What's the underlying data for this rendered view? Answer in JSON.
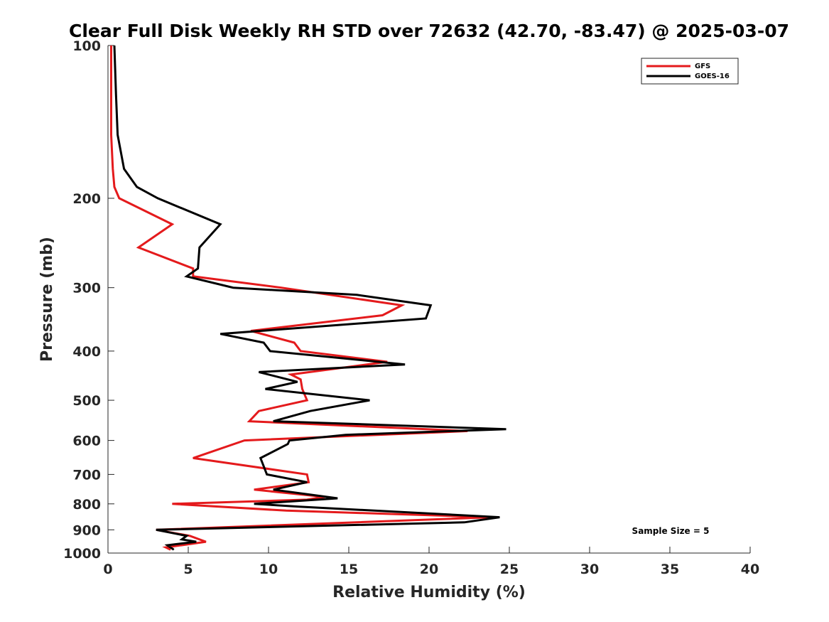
{
  "chart_data": {
    "type": "line",
    "title": "Clear Full Disk Weekly RH STD over 72632 (42.70, -83.47) @ 2025-03-07",
    "xlabel": "Relative Humidity (%)",
    "ylabel": "Pressure (mb)",
    "xlim": [
      0,
      40
    ],
    "ylim": [
      100,
      1000
    ],
    "y_scale": "log",
    "y_reversed": true,
    "x_ticks": [
      0,
      5,
      10,
      15,
      20,
      25,
      30,
      35,
      40
    ],
    "y_ticks": [
      100,
      200,
      300,
      400,
      500,
      600,
      700,
      800,
      900,
      1000
    ],
    "grid": false,
    "legend_position": "top-right",
    "annotation": "Sample Size = 5",
    "series": [
      {
        "name": "GFS",
        "color": "#e41a1c",
        "points": [
          {
            "rh": 0.2,
            "p": 100
          },
          {
            "rh": 0.2,
            "p": 125
          },
          {
            "rh": 0.2,
            "p": 150
          },
          {
            "rh": 0.3,
            "p": 175
          },
          {
            "rh": 0.4,
            "p": 190
          },
          {
            "rh": 0.7,
            "p": 200
          },
          {
            "rh": 4.0,
            "p": 225
          },
          {
            "rh": 1.9,
            "p": 250
          },
          {
            "rh": 5.3,
            "p": 275
          },
          {
            "rh": 5.3,
            "p": 285
          },
          {
            "rh": 10.8,
            "p": 300
          },
          {
            "rh": 18.3,
            "p": 325
          },
          {
            "rh": 17.1,
            "p": 340
          },
          {
            "rh": 8.9,
            "p": 365
          },
          {
            "rh": 11.6,
            "p": 385
          },
          {
            "rh": 12.0,
            "p": 400
          },
          {
            "rh": 17.4,
            "p": 420
          },
          {
            "rh": 11.4,
            "p": 445
          },
          {
            "rh": 12.0,
            "p": 455
          },
          {
            "rh": 12.1,
            "p": 475
          },
          {
            "rh": 12.4,
            "p": 500
          },
          {
            "rh": 9.4,
            "p": 525
          },
          {
            "rh": 8.8,
            "p": 550
          },
          {
            "rh": 22.4,
            "p": 575
          },
          {
            "rh": 8.5,
            "p": 600
          },
          {
            "rh": 5.3,
            "p": 650
          },
          {
            "rh": 12.4,
            "p": 700
          },
          {
            "rh": 12.5,
            "p": 725
          },
          {
            "rh": 9.1,
            "p": 750
          },
          {
            "rh": 13.5,
            "p": 775
          },
          {
            "rh": 12.4,
            "p": 785
          },
          {
            "rh": 4.0,
            "p": 800
          },
          {
            "rh": 11.1,
            "p": 825
          },
          {
            "rh": 23.9,
            "p": 850
          },
          {
            "rh": 3.0,
            "p": 900
          },
          {
            "rh": 5.1,
            "p": 925
          },
          {
            "rh": 6.1,
            "p": 950
          },
          {
            "rh": 3.6,
            "p": 975
          },
          {
            "rh": 3.9,
            "p": 985
          }
        ]
      },
      {
        "name": "GOES-16",
        "color": "#000000",
        "points": [
          {
            "rh": 0.4,
            "p": 100
          },
          {
            "rh": 0.5,
            "p": 125
          },
          {
            "rh": 0.6,
            "p": 150
          },
          {
            "rh": 1.0,
            "p": 175
          },
          {
            "rh": 1.8,
            "p": 190
          },
          {
            "rh": 3.1,
            "p": 200
          },
          {
            "rh": 7.0,
            "p": 225
          },
          {
            "rh": 5.7,
            "p": 250
          },
          {
            "rh": 5.6,
            "p": 275
          },
          {
            "rh": 4.9,
            "p": 285
          },
          {
            "rh": 7.8,
            "p": 300
          },
          {
            "rh": 15.5,
            "p": 310
          },
          {
            "rh": 20.1,
            "p": 325
          },
          {
            "rh": 19.8,
            "p": 345
          },
          {
            "rh": 7.0,
            "p": 370
          },
          {
            "rh": 9.7,
            "p": 385
          },
          {
            "rh": 10.1,
            "p": 400
          },
          {
            "rh": 18.5,
            "p": 425
          },
          {
            "rh": 9.4,
            "p": 440
          },
          {
            "rh": 11.8,
            "p": 460
          },
          {
            "rh": 9.8,
            "p": 475
          },
          {
            "rh": 16.3,
            "p": 500
          },
          {
            "rh": 12.6,
            "p": 525
          },
          {
            "rh": 10.3,
            "p": 550
          },
          {
            "rh": 24.8,
            "p": 570
          },
          {
            "rh": 14.8,
            "p": 585
          },
          {
            "rh": 11.3,
            "p": 600
          },
          {
            "rh": 11.2,
            "p": 610
          },
          {
            "rh": 9.5,
            "p": 650
          },
          {
            "rh": 9.9,
            "p": 700
          },
          {
            "rh": 12.4,
            "p": 725
          },
          {
            "rh": 10.3,
            "p": 750
          },
          {
            "rh": 14.3,
            "p": 780
          },
          {
            "rh": 9.1,
            "p": 800
          },
          {
            "rh": 11.9,
            "p": 810
          },
          {
            "rh": 24.4,
            "p": 850
          },
          {
            "rh": 22.2,
            "p": 870
          },
          {
            "rh": 3.0,
            "p": 900
          },
          {
            "rh": 4.9,
            "p": 925
          },
          {
            "rh": 4.6,
            "p": 940
          },
          {
            "rh": 5.5,
            "p": 950
          },
          {
            "rh": 3.7,
            "p": 965
          },
          {
            "rh": 4.1,
            "p": 985
          }
        ]
      }
    ]
  }
}
